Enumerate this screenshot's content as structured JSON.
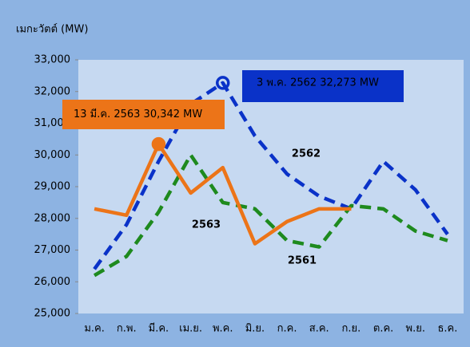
{
  "chart_data": {
    "type": "line",
    "ylabel": "เมกะวัตต์ (MW)",
    "categories": [
      "ม.ค.",
      "ก.พ.",
      "มี.ค.",
      "เม.ย.",
      "พ.ค.",
      "มิ.ย.",
      "ก.ค.",
      "ส.ค.",
      "ก.ย.",
      "ต.ค.",
      "พ.ย.",
      "ธ.ค."
    ],
    "series": [
      {
        "name": "2562",
        "color": "#0a32c8",
        "dash": true,
        "values": [
          26400,
          27800,
          29800,
          31600,
          32273,
          30600,
          29400,
          28700,
          28300,
          29800,
          28900,
          27500
        ]
      },
      {
        "name": "2561",
        "color": "#1e8a1e",
        "dash": true,
        "values": [
          26200,
          26800,
          28200,
          30000,
          28500,
          28300,
          27300,
          27100,
          28400,
          28300,
          27600,
          27300
        ]
      },
      {
        "name": "2563",
        "color": "#ec7418",
        "dash": false,
        "values": [
          28300,
          28100,
          30342,
          28800,
          29600,
          27200,
          27900,
          28300,
          28300,
          null,
          null,
          null
        ]
      }
    ],
    "annotations": [
      {
        "text": "13 มี.ค. 2563  30,342 MW",
        "color": "#ec7418"
      },
      {
        "text": "3 พ.ค. 2562 32,273 MW",
        "color": "#0a32c8"
      }
    ],
    "ylim": [
      25000,
      33000
    ],
    "yticks": [
      {
        "value": 25000,
        "label": "25,000"
      },
      {
        "value": 26000,
        "label": "26,000"
      },
      {
        "value": 27000,
        "label": "27,000"
      },
      {
        "value": 28000,
        "label": "28,000"
      },
      {
        "value": 29000,
        "label": "29,000"
      },
      {
        "value": 30000,
        "label": "30,000"
      },
      {
        "value": 31000,
        "label": "31,000"
      },
      {
        "value": 32000,
        "label": "32,000"
      },
      {
        "value": 33000,
        "label": "33,000"
      }
    ],
    "grid": false
  }
}
